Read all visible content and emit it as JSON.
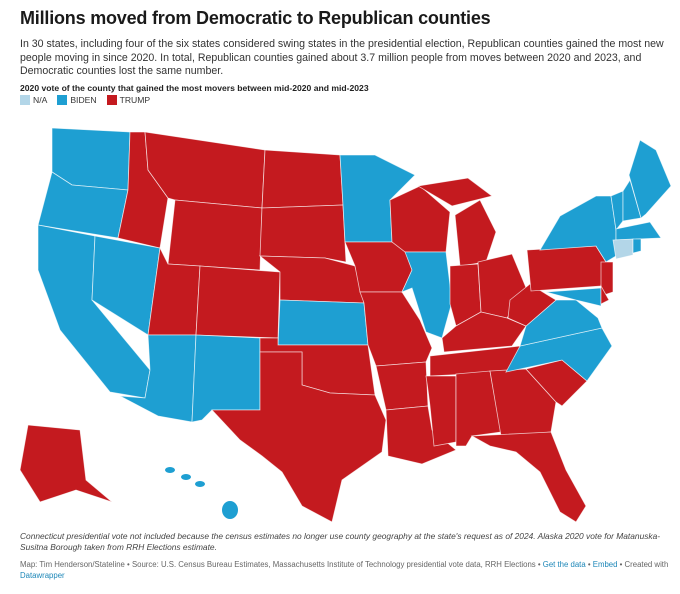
{
  "header": {
    "title": "Millions moved from Democratic to Republican counties",
    "description": "In 30 states, including four of the six states considered swing states in the presidential election, Republican counties gained the most new people moving in since 2020. In total, Republican counties gained about 3.7 million people from moves between 2020 and 2023, and Democratic counties lost the same number.",
    "subtitle": "2020 vote of the county that gained the most movers between mid-2020 and mid-2023"
  },
  "legend": [
    {
      "label": "N/A",
      "color": "#b3d6e8"
    },
    {
      "label": "BIDEN",
      "color": "#1e9fd2"
    },
    {
      "label": "TRUMP",
      "color": "#c41a1f"
    }
  ],
  "states": {
    "WA": "BIDEN",
    "OR": "BIDEN",
    "CA": "BIDEN",
    "NV": "BIDEN",
    "ID": "TRUMP",
    "MT": "TRUMP",
    "WY": "TRUMP",
    "UT": "TRUMP",
    "AZ": "BIDEN",
    "CO": "TRUMP",
    "NM": "BIDEN",
    "ND": "TRUMP",
    "SD": "TRUMP",
    "NE": "TRUMP",
    "KS": "BIDEN",
    "OK": "TRUMP",
    "TX": "TRUMP",
    "MN": "BIDEN",
    "IA": "TRUMP",
    "MO": "TRUMP",
    "AR": "TRUMP",
    "LA": "TRUMP",
    "WI": "TRUMP",
    "IL": "BIDEN",
    "MI": "TRUMP",
    "MIU": "TRUMP",
    "IN": "TRUMP",
    "OH": "TRUMP",
    "KY": "TRUMP",
    "TN": "TRUMP",
    "MS": "TRUMP",
    "AL": "TRUMP",
    "GA": "TRUMP",
    "FL": "TRUMP",
    "SC": "TRUMP",
    "NC": "BIDEN",
    "VA": "BIDEN",
    "WV": "TRUMP",
    "PA": "TRUMP",
    "NY": "BIDEN",
    "NJ": "TRUMP",
    "MD": "BIDEN",
    "DE": "TRUMP",
    "VT": "BIDEN",
    "NH": "BIDEN",
    "ME": "BIDEN",
    "MA": "BIDEN",
    "CT": "N/A",
    "RI": "BIDEN",
    "AK": "TRUMP",
    "HI": "BIDEN"
  },
  "footer": {
    "note": "Connecticut presidential vote not included because the census estimates no longer use county geography at the state's request as of 2024. Alaska 2020 vote for Matanuska-Susitna Borough taken from RRH Elections estimate.",
    "source": "Map: Tim Henderson/Stateline • Source: U.S. Census Bureau Estimates, Massachusetts Institute of Technology presidential vote data, RRH Elections",
    "get_data": "Get the data",
    "embed": "Embed",
    "created_with": "Created with",
    "datawrapper": "Datawrapper"
  }
}
